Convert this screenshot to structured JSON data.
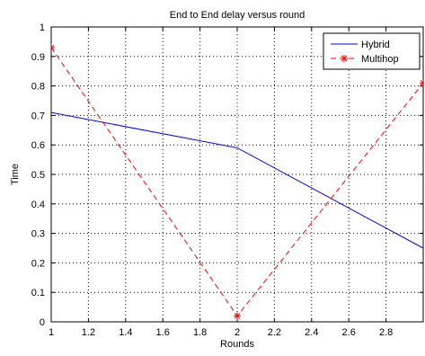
{
  "chart_data": {
    "type": "line",
    "title": "End to End delay versus round",
    "xlabel": "Rounds",
    "ylabel": "Time",
    "xlim": [
      1,
      3
    ],
    "ylim": [
      0,
      1
    ],
    "xticks": [
      1,
      1.2,
      1.4,
      1.6,
      1.8,
      2,
      2.2,
      2.4,
      2.6,
      2.8
    ],
    "xtick_labels": [
      "1",
      "1.2",
      "1.4",
      "1.6",
      "1.8",
      "2",
      "2.2",
      "2.4",
      "2.6",
      "2.8"
    ],
    "yticks": [
      0,
      0.1,
      0.2,
      0.3,
      0.4,
      0.5,
      0.6,
      0.7,
      0.8,
      0.9,
      1
    ],
    "ytick_labels": [
      "0",
      "0.1",
      "0.2",
      "0.3",
      "0.4",
      "0.5",
      "0.6",
      "0.7",
      "0.8",
      "0.9",
      "1"
    ],
    "grid": true,
    "legend_position": "top-right",
    "series": [
      {
        "name": "Hybrid",
        "color": "#0000ff",
        "line_style": "solid",
        "marker": "none",
        "x": [
          1,
          2,
          3
        ],
        "y": [
          0.71,
          0.59,
          0.25
        ]
      },
      {
        "name": "Multihop",
        "color": "#ff0000",
        "line_style": "dashed",
        "marker": "asterisk",
        "x": [
          1,
          2,
          3
        ],
        "y": [
          0.93,
          0.02,
          0.81
        ]
      }
    ]
  }
}
